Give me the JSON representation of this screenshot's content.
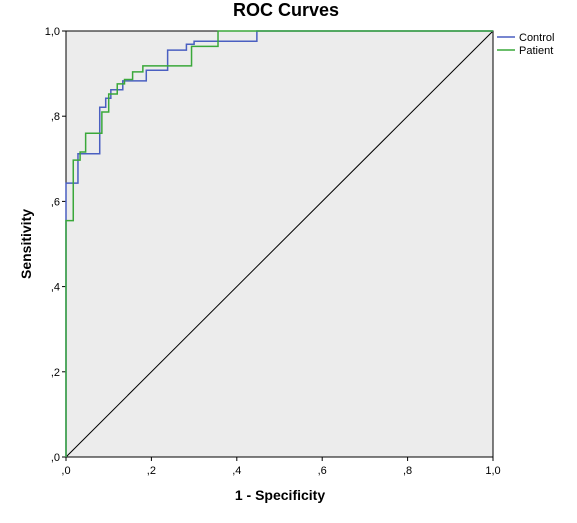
{
  "chart_data": {
    "type": "line",
    "title": "ROC Curves",
    "xlabel": "1 - Specificity",
    "ylabel": "Sensitivity",
    "xlim": [
      0,
      1
    ],
    "ylim": [
      0,
      1
    ],
    "x_ticks": [
      ",0",
      ",2",
      ",4",
      ",6",
      ",8",
      "1,0"
    ],
    "y_ticks": [
      ",0",
      ",2",
      ",4",
      ",6",
      ",8",
      "1,0"
    ],
    "x_tick_values": [
      0,
      0.2,
      0.4,
      0.6,
      0.8,
      1.0
    ],
    "y_tick_values": [
      0,
      0.2,
      0.4,
      0.6,
      0.8,
      1.0
    ],
    "grid": false,
    "legend_position": "right-top",
    "reference_line": {
      "x": [
        0,
        1
      ],
      "y": [
        0,
        1
      ],
      "color": "#000000"
    },
    "series": [
      {
        "name": "Control",
        "color": "#4a5fc1",
        "x": [
          0,
          0,
          0.028,
          0.028,
          0.044,
          0.044,
          0.079,
          0.079,
          0.093,
          0.093,
          0.105,
          0.105,
          0.133,
          0.133,
          0.152,
          0.152,
          0.188,
          0.188,
          0.238,
          0.238,
          0.282,
          0.282,
          0.3,
          0.3,
          0.447,
          0.447,
          1.0
        ],
        "y": [
          0,
          0.643,
          0.643,
          0.712,
          0.712,
          0.712,
          0.712,
          0.821,
          0.821,
          0.842,
          0.842,
          0.862,
          0.862,
          0.883,
          0.883,
          0.883,
          0.883,
          0.908,
          0.908,
          0.955,
          0.955,
          0.969,
          0.969,
          0.976,
          0.976,
          1.0,
          1.0
        ]
      },
      {
        "name": "Patient",
        "color": "#3aa83a",
        "x": [
          0,
          0,
          0.017,
          0.017,
          0.033,
          0.033,
          0.046,
          0.046,
          0.084,
          0.084,
          0.1,
          0.1,
          0.12,
          0.12,
          0.137,
          0.137,
          0.156,
          0.156,
          0.18,
          0.18,
          0.294,
          0.294,
          0.356,
          0.356,
          1.0
        ],
        "y": [
          0,
          0.555,
          0.555,
          0.697,
          0.697,
          0.716,
          0.716,
          0.76,
          0.76,
          0.81,
          0.81,
          0.852,
          0.852,
          0.876,
          0.876,
          0.886,
          0.886,
          0.904,
          0.904,
          0.918,
          0.918,
          0.964,
          0.964,
          1.0,
          1.0
        ]
      }
    ]
  }
}
